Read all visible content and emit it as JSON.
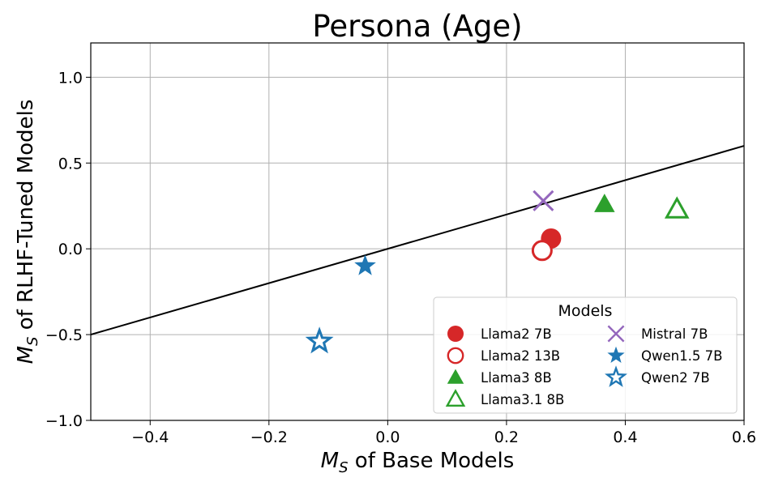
{
  "chart_data": {
    "type": "scatter",
    "title": "Persona (Age)",
    "xlabel_sym": "M",
    "xlabel_sub": "S",
    "xlabel_rest": " of Base Models",
    "ylabel_sym": "M",
    "ylabel_sub": "S",
    "ylabel_rest": " of RLHF-Tuned Models",
    "xlim": [
      -0.5,
      0.6
    ],
    "ylim": [
      -1.0,
      1.2
    ],
    "xticks": [
      -0.4,
      -0.2,
      0.0,
      0.2,
      0.4,
      0.6
    ],
    "xtick_labels": [
      "−0.4",
      "−0.2",
      "0.0",
      "0.2",
      "0.4",
      "0.6"
    ],
    "yticks": [
      -1.0,
      -0.5,
      0.0,
      0.5,
      1.0
    ],
    "ytick_labels": [
      "−1.0",
      "−0.5",
      "0.0",
      "0.5",
      "1.0"
    ],
    "grid": true,
    "reference_line": {
      "slope": 1,
      "intercept": 0,
      "color": "#000000"
    },
    "legend": {
      "title": "Models",
      "placement": "lower-right",
      "columns": 2
    },
    "series": [
      {
        "name": "Llama2 7B",
        "x": 0.275,
        "y": 0.06,
        "marker": "circle",
        "filled": true,
        "color": "#d62728"
      },
      {
        "name": "Llama2 13B",
        "x": 0.26,
        "y": -0.01,
        "marker": "circle",
        "filled": false,
        "color": "#d62728"
      },
      {
        "name": "Llama3 8B",
        "x": 0.365,
        "y": 0.26,
        "marker": "triangle",
        "filled": true,
        "color": "#2ca02c"
      },
      {
        "name": "Llama3.1 8B",
        "x": 0.487,
        "y": 0.23,
        "marker": "triangle",
        "filled": false,
        "color": "#2ca02c"
      },
      {
        "name": "Mistral 7B",
        "x": 0.262,
        "y": 0.28,
        "marker": "x",
        "filled": true,
        "color": "#9467bd"
      },
      {
        "name": "Qwen1.5 7B",
        "x": -0.038,
        "y": -0.1,
        "marker": "star",
        "filled": true,
        "color": "#1f77b4"
      },
      {
        "name": "Qwen2 7B",
        "x": -0.115,
        "y": -0.54,
        "marker": "star",
        "filled": false,
        "color": "#1f77b4"
      }
    ]
  }
}
